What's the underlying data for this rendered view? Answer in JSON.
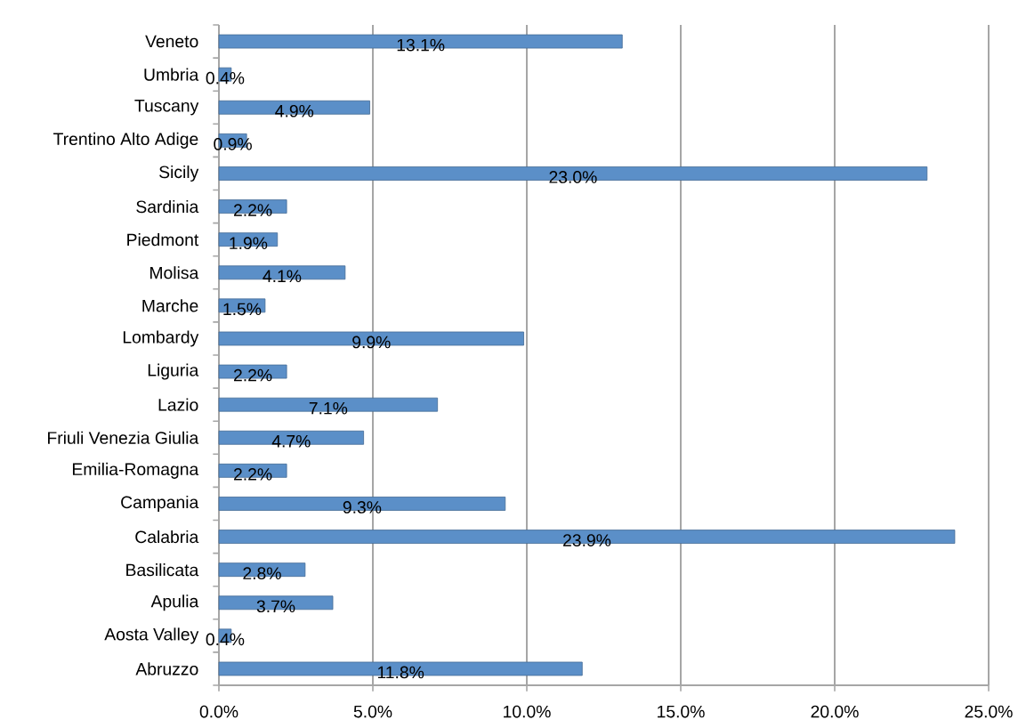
{
  "chart_data": {
    "type": "bar",
    "orientation": "horizontal",
    "categories": [
      "Veneto",
      "Umbria",
      "Tuscany",
      "Trentino Alto Adige",
      "Sicily",
      "Sardinia",
      "Piedmont",
      "Molisa",
      "Marche",
      "Lombardy",
      "Liguria",
      "Lazio",
      "Friuli Venezia Giulia",
      "Emilia-Romagna",
      "Campania",
      "Calabria",
      "Basilicata",
      "Apulia",
      "Aosta Valley",
      "Abruzzo"
    ],
    "values": [
      13.1,
      0.4,
      4.9,
      0.9,
      23.0,
      2.2,
      1.9,
      4.1,
      1.5,
      9.9,
      2.2,
      7.1,
      4.7,
      2.2,
      9.3,
      23.9,
      2.8,
      3.7,
      0.4,
      11.8
    ],
    "value_labels": [
      "13.1%",
      "0.4%",
      "4.9%",
      "0.9%",
      "23.0%",
      "2.2%",
      "1.9%",
      "4.1%",
      "1.5%",
      "9.9%",
      "2.2%",
      "7.1%",
      "4.7%",
      "2.2%",
      "9.3%",
      "23.9%",
      "2.8%",
      "3.7%",
      "0.4%",
      "11.8%"
    ],
    "color": "#5b8fc8",
    "xlim": [
      0,
      25
    ],
    "xticks": [
      {
        "value": 0,
        "label": "0.0%"
      },
      {
        "value": 5,
        "label": "5.0%"
      },
      {
        "value": 10,
        "label": "10.0%"
      },
      {
        "value": 15,
        "label": "15.0%"
      },
      {
        "value": 20,
        "label": "20.0%"
      },
      {
        "value": 25,
        "label": "25.0%"
      }
    ],
    "grid": "x"
  }
}
